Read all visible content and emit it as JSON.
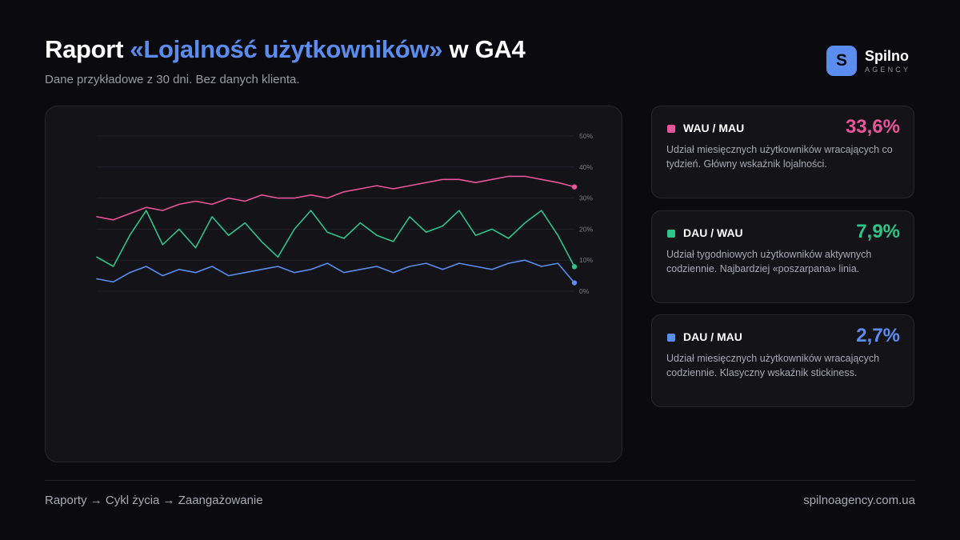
{
  "header": {
    "title_prefix": "Raport ",
    "title_accent": "«Lojalność użytkowników»",
    "title_suffix": " w GA4",
    "subtitle": "Dane przykładowe z 30 dni. Bez danych klienta."
  },
  "logo": {
    "mark": "S",
    "name": "Spilno",
    "sub": "AGENCY"
  },
  "kpis": [
    {
      "name": "WAU / MAU",
      "value": "33,6%",
      "color": "#e8559a",
      "desc": "Udział miesięcznych użytkowników wracających co tydzień. Główny wskaźnik lojalności."
    },
    {
      "name": "DAU / WAU",
      "value": "7,9%",
      "color": "#2fc48a",
      "desc": "Udział tygodniowych użytkowników aktywnych codziennie. Najbardziej «poszarpana» linia."
    },
    {
      "name": "DAU / MAU",
      "value": "2,7%",
      "color": "#5b8def",
      "desc": "Udział miesięcznych użytkowników wracających codziennie. Klasyczny wskaźnik stickiness."
    }
  ],
  "footer": {
    "breadcrumb": "Raporty → Cykl życia → Zaangażowanie",
    "url": "spilnoagency.com.ua"
  },
  "chart_data": {
    "type": "line",
    "x": [
      1,
      2,
      3,
      4,
      5,
      6,
      7,
      8,
      9,
      10,
      11,
      12,
      13,
      14,
      15,
      16,
      17,
      18,
      19,
      20,
      21,
      22,
      23,
      24,
      25,
      26,
      27,
      28,
      29,
      30
    ],
    "yticks": [
      "0%",
      "10%",
      "20%",
      "30%",
      "40%",
      "50%"
    ],
    "ylim": [
      0,
      50
    ],
    "grid": true,
    "series": [
      {
        "name": "WAU / MAU",
        "color": "#e8559a",
        "values": [
          24,
          23,
          25,
          27,
          26,
          28,
          29,
          28,
          30,
          29,
          31,
          30,
          30,
          31,
          30,
          32,
          33,
          34,
          33,
          34,
          35,
          36,
          36,
          35,
          36,
          37,
          37,
          36,
          35,
          33.6
        ]
      },
      {
        "name": "DAU / WAU",
        "color": "#2fc48a",
        "values": [
          11,
          8,
          18,
          26,
          15,
          20,
          14,
          24,
          18,
          22,
          16,
          11,
          20,
          26,
          19,
          17,
          22,
          18,
          16,
          24,
          19,
          21,
          26,
          18,
          20,
          17,
          22,
          26,
          18,
          7.9
        ]
      },
      {
        "name": "DAU / MAU",
        "color": "#5b8def",
        "values": [
          4,
          3,
          6,
          8,
          5,
          7,
          6,
          8,
          5,
          6,
          7,
          8,
          6,
          7,
          9,
          6,
          7,
          8,
          6,
          8,
          9,
          7,
          9,
          8,
          7,
          9,
          10,
          8,
          9,
          2.7
        ]
      }
    ]
  }
}
